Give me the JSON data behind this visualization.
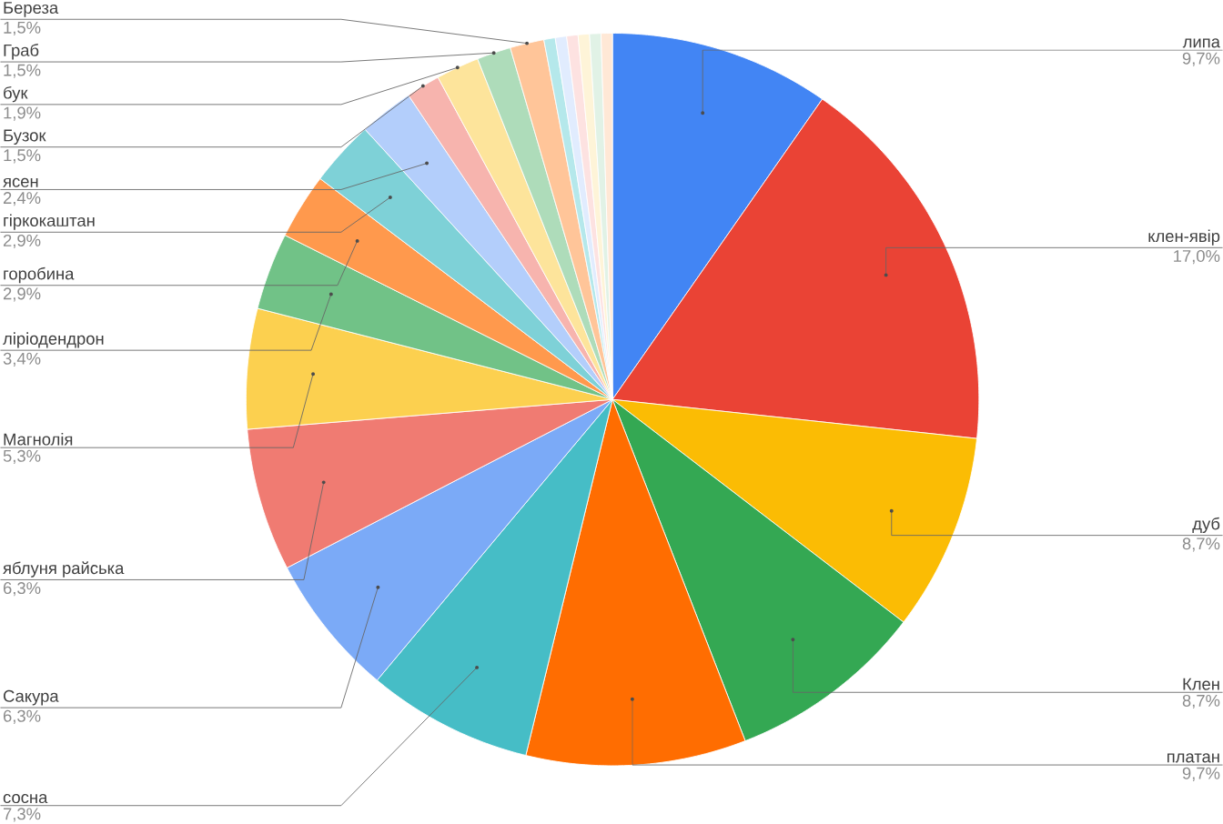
{
  "chart_data": {
    "type": "pie",
    "categories": [
      "липа",
      "клен-явір",
      "дуб",
      "Клен",
      "платан",
      "сосна",
      "Сакура",
      "яблуня райська",
      "Магнолія",
      "ліріодендрон",
      "горобина",
      "гіркокаштан",
      "ясен",
      "Бузок",
      "бук",
      "Граб",
      "Береза",
      null,
      null,
      null,
      null,
      null,
      null
    ],
    "values": [
      9.7,
      17.0,
      8.7,
      8.7,
      9.7,
      7.3,
      6.3,
      6.3,
      5.3,
      3.4,
      2.9,
      2.9,
      2.4,
      1.5,
      1.9,
      1.5,
      1.5,
      0.5,
      0.5,
      0.5,
      0.5,
      0.5,
      0.5
    ],
    "value_labels": [
      "9,7%",
      "17,0%",
      "8,7%",
      "8,7%",
      "9,7%",
      "7,3%",
      "6,3%",
      "6,3%",
      "5,3%",
      "3,4%",
      "2,9%",
      "2,9%",
      "2,4%",
      "1,5%",
      "1,9%",
      "1,5%",
      "1,5%",
      null,
      null,
      null,
      null,
      null,
      null
    ],
    "colors": [
      "#4285f4",
      "#ea4335",
      "#fbbc04",
      "#34a853",
      "#ff6d01",
      "#46bdc6",
      "#7baaf7",
      "#f07b72",
      "#fcd04f",
      "#71c287",
      "#ff994d",
      "#7ed1d7",
      "#b3cefb",
      "#f7b4ae",
      "#fde49b",
      "#aedcba",
      "#ffc599",
      "#b5e8eb",
      "#e1ecfe",
      "#fde2e1",
      "#fef4d8",
      "#e1f2e6",
      "#ffe8d6"
    ]
  }
}
